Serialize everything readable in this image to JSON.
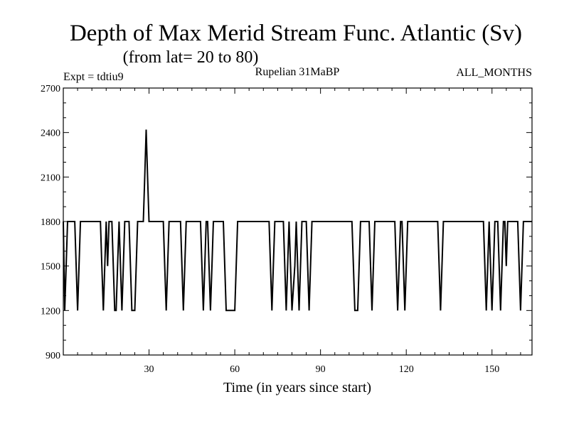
{
  "chart_data": {
    "type": "line",
    "title": "Depth of Max Merid Stream Func. Atlantic (Sv)",
    "subtitle": "(from lat= 20 to 80)",
    "annotations": {
      "left": "Expt = tdtiu9",
      "center": "Rupelian  31MaBP",
      "right": "ALL_MONTHS"
    },
    "xlabel": "Time (in years since start)",
    "ylabel": "",
    "xlim": [
      0,
      164
    ],
    "ylim": [
      900,
      2700
    ],
    "x_ticks": [
      30,
      60,
      90,
      120,
      150
    ],
    "y_ticks": [
      900,
      1200,
      1500,
      1800,
      2100,
      2400,
      2700
    ],
    "series": [
      {
        "name": "depth",
        "x": [
          0,
          0.5,
          1,
          1.5,
          2,
          4,
          4.5,
          5,
          5.5,
          6,
          13,
          13.5,
          14,
          14.5,
          15,
          15.5,
          16,
          17,
          17.5,
          18,
          18.5,
          19,
          19.5,
          20,
          20.5,
          21,
          21.5,
          22,
          23,
          23.5,
          24,
          24.5,
          25,
          25.5,
          26,
          28,
          28.5,
          29,
          29.5,
          30,
          35,
          35.5,
          36,
          36.5,
          37,
          41,
          41.5,
          42,
          42.5,
          43,
          48,
          48.5,
          49,
          49.5,
          50,
          50.5,
          51,
          51.5,
          52,
          52.5,
          53,
          56,
          56.5,
          57,
          57.5,
          58,
          60,
          60.5,
          61,
          72,
          72.5,
          73,
          73.5,
          74,
          77,
          77.5,
          78,
          78.5,
          79,
          79.5,
          80,
          81,
          81.5,
          82,
          82.5,
          83,
          83.5,
          84,
          85,
          85.5,
          86,
          86.5,
          87,
          101,
          101.5,
          102,
          103,
          103.5,
          104,
          107,
          107.5,
          108,
          108.5,
          109,
          116,
          116.5,
          117,
          117.5,
          118,
          118.5,
          119,
          119.5,
          120,
          120.5,
          121,
          131,
          131.5,
          132,
          132.5,
          133,
          147,
          147.5,
          148,
          148.5,
          149,
          149.5,
          150,
          150.5,
          151,
          152,
          152.5,
          153,
          153.5,
          154,
          154.5,
          155,
          155.5,
          156,
          159,
          159.5,
          160,
          160.5,
          161,
          164
        ],
        "values": [
          1800,
          1200,
          1500,
          1800,
          1800,
          1800,
          1500,
          1200,
          1500,
          1800,
          1800,
          1500,
          1200,
          1500,
          1800,
          1500,
          1800,
          1800,
          1500,
          1200,
          1200,
          1500,
          1800,
          1500,
          1200,
          1500,
          1800,
          1800,
          1800,
          1500,
          1200,
          1200,
          1200,
          1500,
          1800,
          1800,
          2100,
          2420,
          2100,
          1800,
          1800,
          1500,
          1200,
          1500,
          1800,
          1800,
          1500,
          1200,
          1500,
          1800,
          1800,
          1500,
          1200,
          1500,
          1800,
          1800,
          1500,
          1200,
          1500,
          1800,
          1800,
          1800,
          1500,
          1200,
          1200,
          1200,
          1200,
          1500,
          1800,
          1800,
          1500,
          1200,
          1500,
          1800,
          1800,
          1500,
          1200,
          1500,
          1800,
          1500,
          1200,
          1500,
          1800,
          1500,
          1200,
          1500,
          1800,
          1800,
          1800,
          1500,
          1200,
          1500,
          1800,
          1800,
          1500,
          1200,
          1200,
          1500,
          1800,
          1800,
          1500,
          1200,
          1500,
          1800,
          1800,
          1500,
          1200,
          1500,
          1800,
          1800,
          1500,
          1200,
          1500,
          1800,
          1800,
          1800,
          1500,
          1200,
          1500,
          1800,
          1800,
          1500,
          1200,
          1500,
          1800,
          1500,
          1200,
          1500,
          1800,
          1800,
          1500,
          1200,
          1500,
          1800,
          1800,
          1500,
          1800,
          1800,
          1800,
          1500,
          1200,
          1500,
          1800,
          1800
        ]
      }
    ]
  }
}
